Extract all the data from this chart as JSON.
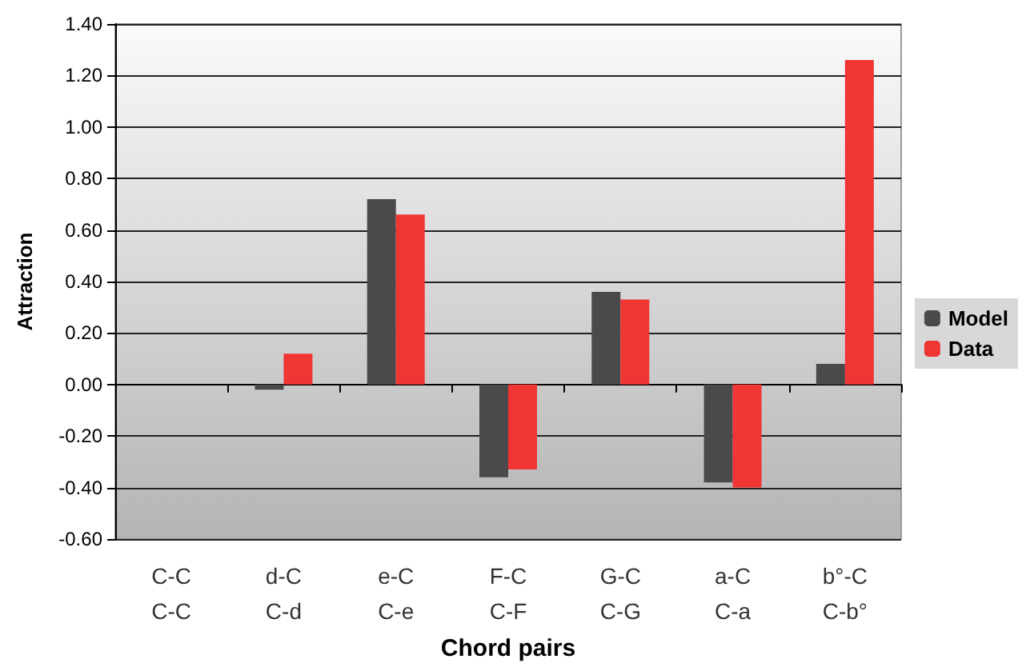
{
  "chart_data": {
    "type": "bar",
    "xlabel": "Chord pairs",
    "ylabel": "Attraction",
    "categories": [
      "C-C\nC-C",
      "d-C\nC-d",
      "e-C\nC-e",
      "F-C\nC-F",
      "G-C\nC-G",
      "a-C\nC-a",
      "b°-C\nC-b°"
    ],
    "series": [
      {
        "name": "Model",
        "color": "#4a4a4a",
        "values": [
          0,
          -0.02,
          0.72,
          -0.36,
          0.36,
          -0.38,
          0.08
        ]
      },
      {
        "name": "Data",
        "color": "#f03535",
        "values": [
          0,
          0.12,
          0.66,
          -0.33,
          0.33,
          -0.4,
          1.26
        ]
      }
    ],
    "ylim": [
      -0.6,
      1.4
    ],
    "yticks": [
      {
        "value": -0.6,
        "label": "-0.60"
      },
      {
        "value": -0.4,
        "label": "-0.40"
      },
      {
        "value": -0.2,
        "label": "-0.20"
      },
      {
        "value": 0,
        "label": "0.00"
      },
      {
        "value": 0.2,
        "label": "0.20"
      },
      {
        "value": 0.4,
        "label": "0.40"
      },
      {
        "value": 0.6,
        "label": "0.60"
      },
      {
        "value": 0.8,
        "label": "0.80"
      },
      {
        "value": 1,
        "label": "1.00"
      },
      {
        "value": 1.2,
        "label": "1.20"
      },
      {
        "value": 1.4,
        "label": "1.40"
      }
    ],
    "grid": "y",
    "legend": "right"
  }
}
